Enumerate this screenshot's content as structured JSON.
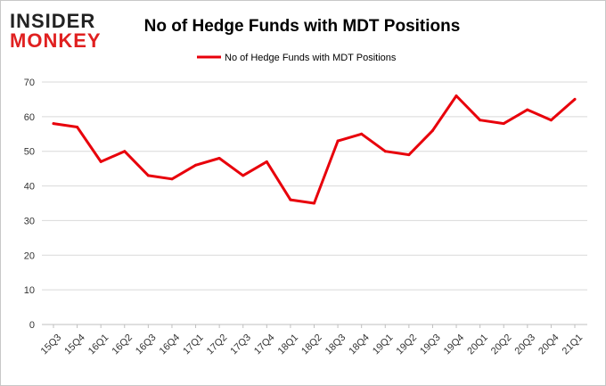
{
  "logo": {
    "line1": "INSIDER",
    "line2": "MONKEY",
    "color_dark": "#222222",
    "color_red": "#e02020"
  },
  "chart_data": {
    "type": "line",
    "title": "No of Hedge Funds with MDT Positions",
    "xlabel": "",
    "ylabel": "",
    "categories": [
      "15Q3",
      "15Q4",
      "16Q1",
      "16Q2",
      "16Q3",
      "16Q4",
      "17Q1",
      "17Q2",
      "17Q3",
      "17Q4",
      "18Q1",
      "18Q2",
      "18Q3",
      "18Q4",
      "19Q1",
      "19Q2",
      "19Q3",
      "19Q4",
      "20Q1",
      "20Q2",
      "20Q3",
      "20Q4",
      "21Q1"
    ],
    "series": [
      {
        "name": "No of Hedge Funds with MDT Positions",
        "color": "#e8000b",
        "values": [
          58,
          57,
          47,
          50,
          43,
          42,
          46,
          48,
          43,
          47,
          36,
          35,
          53,
          55,
          50,
          49,
          56,
          66,
          59,
          58,
          62,
          59,
          65
        ]
      }
    ],
    "ylim": [
      0,
      70
    ],
    "yticks": [
      0,
      10,
      20,
      30,
      40,
      50,
      60,
      70
    ],
    "grid": true,
    "legend_position": "top-center"
  }
}
